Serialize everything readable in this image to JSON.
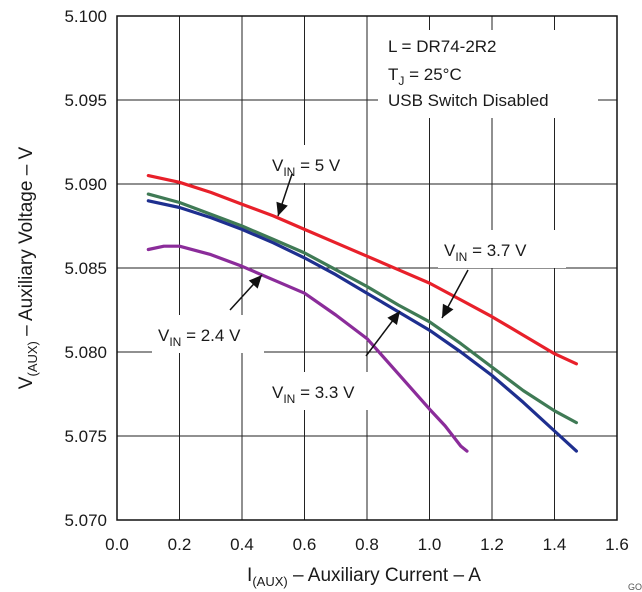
{
  "chart_data": {
    "type": "line",
    "xlabel": {
      "main": "I",
      "sub": "(AUX)",
      "rest": " – Auxiliary Current – A"
    },
    "ylabel": {
      "main": "V",
      "sub": "(AUX)",
      "rest": " – Auxiliary Voltage – V"
    },
    "xlim": [
      0.0,
      1.6
    ],
    "ylim": [
      5.07,
      5.1
    ],
    "xticks": [
      "0.0",
      "0.2",
      "0.4",
      "0.6",
      "0.8",
      "1.0",
      "1.2",
      "1.4",
      "1.6"
    ],
    "yticks": [
      "5.070",
      "5.075",
      "5.080",
      "5.085",
      "5.090",
      "5.095",
      "5.100"
    ],
    "grid": true,
    "conditions": [
      "L = DR74-2R2",
      "T",
      "J",
      " = 25°C",
      "USB Switch Disabled"
    ],
    "series": [
      {
        "name": "VIN = 5 V",
        "label_main": "V",
        "label_sub": "IN",
        "label_rest": " = 5 V",
        "color": "#e8202a",
        "x": [
          0.1,
          0.2,
          0.3,
          0.4,
          0.5,
          0.6,
          0.7,
          0.8,
          0.9,
          1.0,
          1.1,
          1.2,
          1.3,
          1.4,
          1.47
        ],
        "y": [
          5.0905,
          5.0901,
          5.0895,
          5.0888,
          5.0881,
          5.0873,
          5.0865,
          5.0857,
          5.0849,
          5.0841,
          5.0831,
          5.0821,
          5.081,
          5.0799,
          5.0793
        ]
      },
      {
        "name": "VIN = 3.7 V",
        "label_main": "V",
        "label_sub": "IN",
        "label_rest": " = 3.7 V",
        "color": "#3f7a55",
        "x": [
          0.1,
          0.2,
          0.3,
          0.4,
          0.5,
          0.6,
          0.7,
          0.8,
          0.9,
          1.0,
          1.1,
          1.2,
          1.3,
          1.4,
          1.47
        ],
        "y": [
          5.0894,
          5.0889,
          5.0882,
          5.0875,
          5.0867,
          5.0859,
          5.0849,
          5.0839,
          5.0828,
          5.0818,
          5.0805,
          5.0791,
          5.0777,
          5.0765,
          5.0758
        ]
      },
      {
        "name": "VIN = 3.3 V",
        "label_main": "V",
        "label_sub": "IN",
        "label_rest": " = 3.3 V",
        "color": "#1e2f8f",
        "x": [
          0.1,
          0.2,
          0.3,
          0.4,
          0.5,
          0.6,
          0.7,
          0.8,
          0.9,
          1.0,
          1.1,
          1.2,
          1.3,
          1.4,
          1.47
        ],
        "y": [
          5.089,
          5.0886,
          5.088,
          5.0873,
          5.0865,
          5.0856,
          5.0846,
          5.0835,
          5.0824,
          5.0813,
          5.08,
          5.0786,
          5.077,
          5.0753,
          5.0741
        ]
      },
      {
        "name": "VIN = 2.4 V",
        "label_main": "V",
        "label_sub": "IN",
        "label_rest": " = 2.4 V",
        "color": "#8b2c9a",
        "x": [
          0.1,
          0.15,
          0.2,
          0.3,
          0.4,
          0.5,
          0.6,
          0.7,
          0.8,
          0.9,
          1.0,
          1.05,
          1.1,
          1.12
        ],
        "y": [
          5.0861,
          5.0863,
          5.0863,
          5.0858,
          5.0851,
          5.0843,
          5.0835,
          5.0822,
          5.0808,
          5.0787,
          5.0766,
          5.0756,
          5.0744,
          5.0741
        ]
      }
    ]
  },
  "footer_code": "GO"
}
